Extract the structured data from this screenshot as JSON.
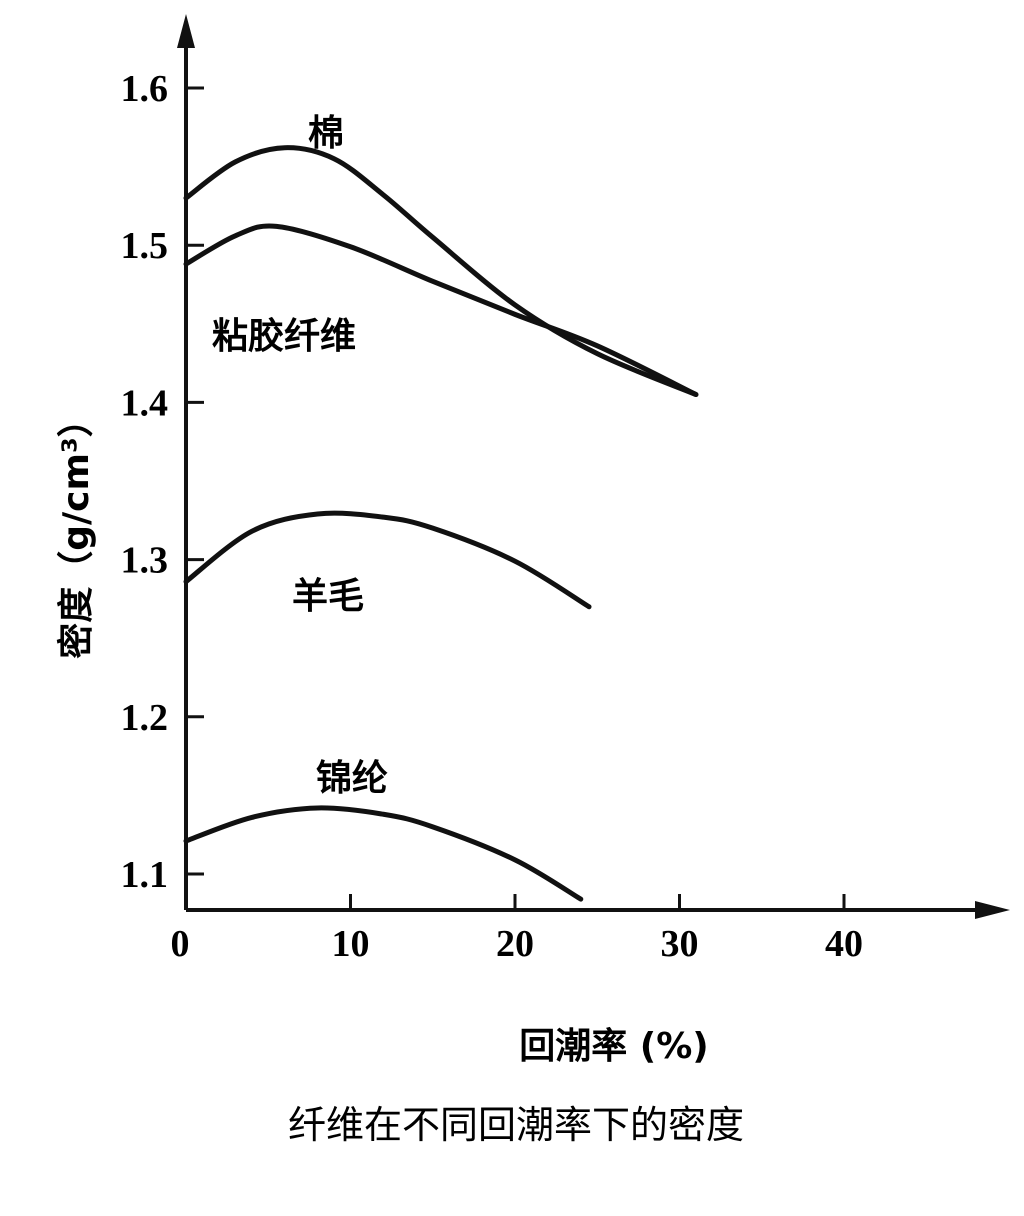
{
  "chart_data": {
    "type": "line",
    "title": "纤维在不同回潮率下的密度",
    "xlabel": "回潮率 (%)",
    "ylabel": "密度（g/cm³）",
    "xlim": [
      0,
      48
    ],
    "ylim": [
      1.075,
      1.65
    ],
    "x_ticks": [
      "0",
      "10",
      "20",
      "30",
      "40"
    ],
    "y_ticks": [
      "1.1",
      "1.2",
      "1.3",
      "1.4",
      "1.5",
      "1.6"
    ],
    "grid": false,
    "series": [
      {
        "name": "棉",
        "x": [
          0,
          3,
          6,
          9,
          12,
          15,
          20,
          25,
          31
        ],
        "y": [
          1.53,
          1.553,
          1.562,
          1.555,
          1.532,
          1.505,
          1.462,
          1.431,
          1.405
        ]
      },
      {
        "name": "粘胶纤维",
        "x": [
          0,
          3,
          5.5,
          10,
          15,
          20,
          25,
          31
        ],
        "y": [
          1.488,
          1.506,
          1.512,
          1.499,
          1.477,
          1.456,
          1.436,
          1.405
        ]
      },
      {
        "name": "羊毛",
        "x": [
          0,
          4,
          8,
          12,
          15,
          20,
          24.5
        ],
        "y": [
          1.286,
          1.318,
          1.329,
          1.327,
          1.32,
          1.299,
          1.27
        ]
      },
      {
        "name": "锦纶",
        "x": [
          0,
          4,
          8,
          12,
          15,
          20,
          24
        ],
        "y": [
          1.121,
          1.136,
          1.142,
          1.138,
          1.13,
          1.109,
          1.084
        ]
      }
    ]
  }
}
